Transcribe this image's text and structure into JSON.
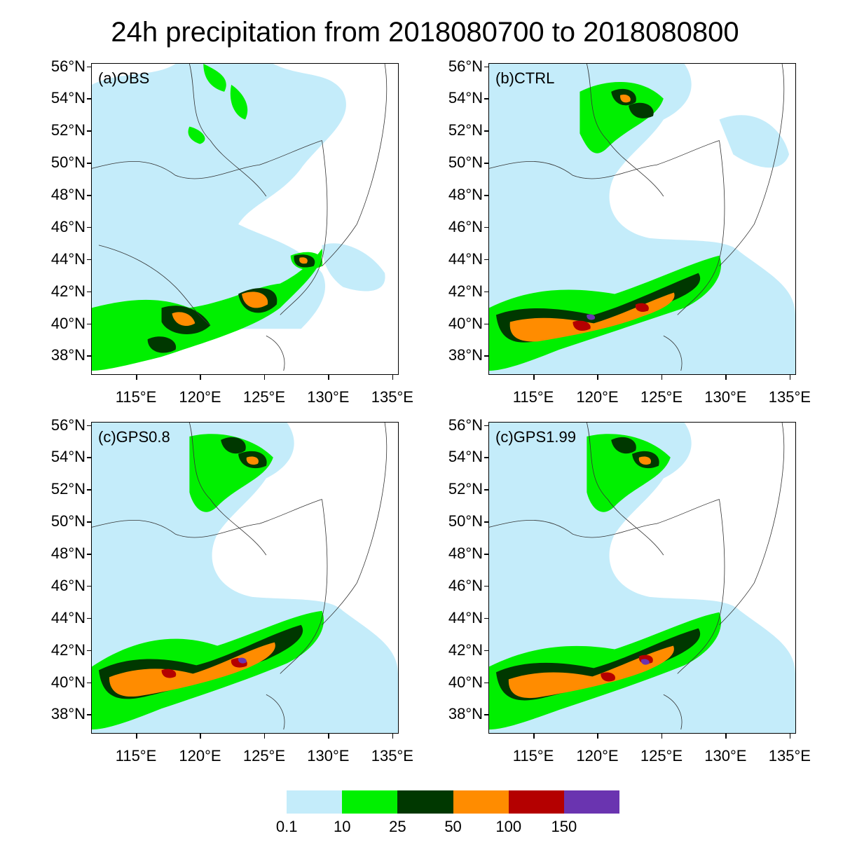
{
  "title": "24h precipitation from 2018080700 to 2018080800",
  "panels": [
    {
      "label": "(a)OBS"
    },
    {
      "label": "(b)CTRL"
    },
    {
      "label": "(c)GPS0.8"
    },
    {
      "label": "(c)GPS1.99"
    }
  ],
  "lat_labels": [
    "56°N",
    "54°N",
    "52°N",
    "50°N",
    "48°N",
    "46°N",
    "44°N",
    "42°N",
    "40°N",
    "38°N"
  ],
  "lat_values": [
    56,
    54,
    52,
    50,
    48,
    46,
    44,
    42,
    40,
    38
  ],
  "lon_labels": [
    "115°E",
    "120°E",
    "125°E",
    "130°E",
    "135°E"
  ],
  "lon_values": [
    115,
    120,
    125,
    130,
    135
  ],
  "map_extent": {
    "lon_min": 111.5,
    "lon_max": 135.5,
    "lat_min": 36.8,
    "lat_max": 56.2
  },
  "colorbar": {
    "levels": [
      "0.1",
      "10",
      "25",
      "50",
      "100",
      "150"
    ],
    "colors": [
      "#ffffff",
      "#c4ecfa",
      "#00f000",
      "#003800",
      "#ff8c00",
      "#b40000",
      "#6a34b0"
    ]
  },
  "palette": {
    "light_blue": "#c4ecfa",
    "green": "#00f000",
    "dark_green": "#003800",
    "orange": "#ff8c00",
    "red": "#b40000",
    "purple": "#6a34b0"
  }
}
